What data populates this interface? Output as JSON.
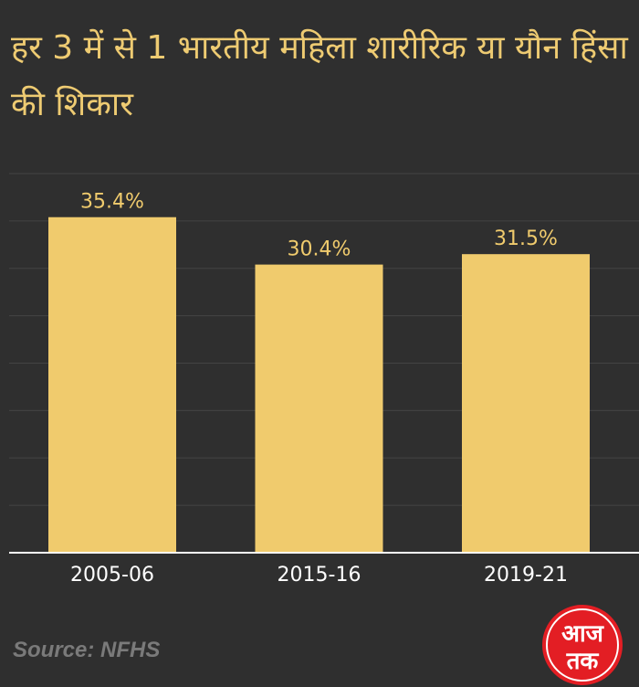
{
  "title": "हर 3 में से 1 भारतीय महिला शारीरिक या यौन हिंसा की शिकार",
  "source": "Source: NFHS",
  "logo_text": "आज तक",
  "colors": {
    "background": "#2f2f2f",
    "bar": "#f0cb6d",
    "title": "#eecb72",
    "label": "#ffffff",
    "grid": "#444444"
  },
  "chart_data": {
    "type": "bar",
    "categories": [
      "2005-06",
      "2015-16",
      "2019-21"
    ],
    "values": [
      35.4,
      30.4,
      31.5
    ],
    "value_labels": [
      "35.4%",
      "30.4%",
      "31.5%"
    ],
    "title": "हर 3 में से 1 भारतीय महिला शारीरिक या यौन हिंसा की शिकार",
    "xlabel": "",
    "ylabel": "",
    "ylim": [
      0,
      40
    ],
    "grid": true,
    "legend": "none"
  }
}
